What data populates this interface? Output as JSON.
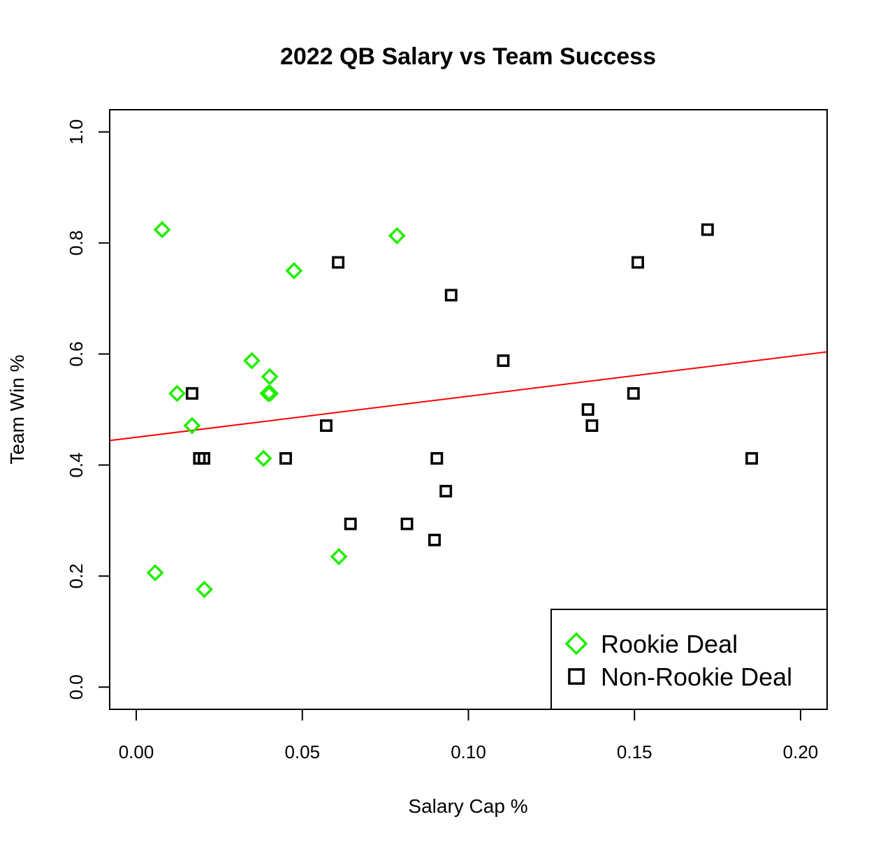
{
  "chart_data": {
    "type": "scatter",
    "title": "2022 QB Salary vs Team Success",
    "xlabel": "Salary Cap %",
    "ylabel": "Team Win %",
    "xlim": [
      -0.008,
      0.208
    ],
    "ylim": [
      -0.04,
      1.04
    ],
    "x_ticks": [
      0.0,
      0.05,
      0.1,
      0.15,
      0.2
    ],
    "x_tick_labels": [
      "0.00",
      "0.05",
      "0.10",
      "0.15",
      "0.20"
    ],
    "y_ticks": [
      0.0,
      0.2,
      0.4,
      0.6,
      0.8,
      1.0
    ],
    "y_tick_labels": [
      "0.0",
      "0.2",
      "0.4",
      "0.6",
      "0.8",
      "1.0"
    ],
    "grid": false,
    "legend_position": "bottom-right",
    "series": [
      {
        "name": "Rookie Deal",
        "marker": "diamond",
        "color": "#22ee00",
        "points": [
          {
            "x": 0.0078,
            "y": 0.824
          },
          {
            "x": 0.0785,
            "y": 0.813
          },
          {
            "x": 0.0475,
            "y": 0.75
          },
          {
            "x": 0.0348,
            "y": 0.588
          },
          {
            "x": 0.0402,
            "y": 0.559
          },
          {
            "x": 0.0123,
            "y": 0.529
          },
          {
            "x": 0.0397,
            "y": 0.529
          },
          {
            "x": 0.0403,
            "y": 0.529
          },
          {
            "x": 0.0168,
            "y": 0.471
          },
          {
            "x": 0.0383,
            "y": 0.412
          },
          {
            "x": 0.061,
            "y": 0.235
          },
          {
            "x": 0.0057,
            "y": 0.206
          },
          {
            "x": 0.0205,
            "y": 0.176
          }
        ]
      },
      {
        "name": "Non-Rookie Deal",
        "marker": "square",
        "color": "#000000",
        "points": [
          {
            "x": 0.0608,
            "y": 0.765
          },
          {
            "x": 0.0948,
            "y": 0.706
          },
          {
            "x": 0.1105,
            "y": 0.588
          },
          {
            "x": 0.0168,
            "y": 0.529
          },
          {
            "x": 0.0572,
            "y": 0.471
          },
          {
            "x": 0.019,
            "y": 0.412
          },
          {
            "x": 0.0204,
            "y": 0.412
          },
          {
            "x": 0.045,
            "y": 0.412
          },
          {
            "x": 0.0905,
            "y": 0.412
          },
          {
            "x": 0.0932,
            "y": 0.353
          },
          {
            "x": 0.0645,
            "y": 0.294
          },
          {
            "x": 0.0815,
            "y": 0.294
          },
          {
            "x": 0.0898,
            "y": 0.265
          },
          {
            "x": 0.136,
            "y": 0.5
          },
          {
            "x": 0.1372,
            "y": 0.471
          },
          {
            "x": 0.1497,
            "y": 0.529
          },
          {
            "x": 0.151,
            "y": 0.765
          },
          {
            "x": 0.172,
            "y": 0.824
          },
          {
            "x": 0.1853,
            "y": 0.412
          }
        ]
      }
    ],
    "trend_line": {
      "color": "#ff0000",
      "intercept": 0.45,
      "slope": 0.74
    }
  }
}
